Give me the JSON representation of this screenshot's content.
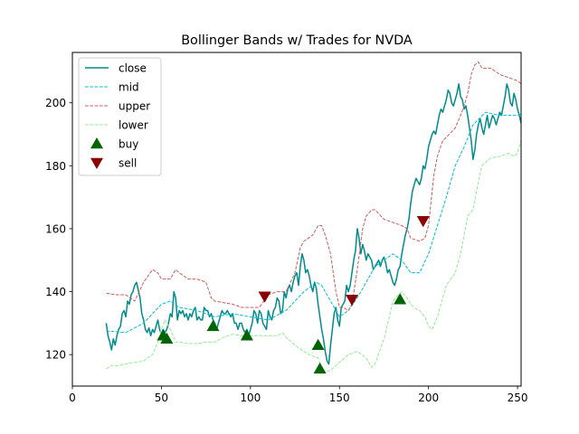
{
  "chart_data": {
    "type": "line",
    "title": "Bollinger Bands w/ Trades for NVDA",
    "xlabel": "",
    "ylabel": "",
    "xlim": [
      0,
      252
    ],
    "ylim": [
      110,
      216
    ],
    "xticks": [
      0,
      50,
      100,
      150,
      200,
      250
    ],
    "yticks": [
      120,
      140,
      160,
      180,
      200
    ],
    "grid": false,
    "legend_position": "top-left",
    "series": [
      {
        "name": "close",
        "color": "#008b8b",
        "style": "solid",
        "x": [
          19,
          20,
          21,
          22,
          23,
          24,
          25,
          26,
          27,
          28,
          29,
          30,
          31,
          32,
          33,
          34,
          35,
          36,
          37,
          38,
          39,
          40,
          41,
          42,
          43,
          44,
          45,
          46,
          47,
          48,
          49,
          50,
          51,
          52,
          53,
          54,
          55,
          56,
          57,
          58,
          59,
          60,
          61,
          62,
          63,
          64,
          65,
          66,
          67,
          68,
          69,
          70,
          71,
          72,
          73,
          74,
          75,
          76,
          77,
          78,
          79,
          80,
          81,
          82,
          83,
          84,
          85,
          86,
          87,
          88,
          89,
          90,
          91,
          92,
          93,
          94,
          95,
          96,
          97,
          98,
          99,
          100,
          101,
          102,
          103,
          104,
          105,
          106,
          107,
          108,
          109,
          110,
          111,
          112,
          113,
          114,
          115,
          116,
          117,
          118,
          119,
          120,
          121,
          122,
          123,
          124,
          125,
          126,
          127,
          128,
          129,
          130,
          131,
          132,
          133,
          134,
          135,
          136,
          137,
          138,
          139,
          140,
          141,
          142,
          143,
          144,
          145,
          146,
          147,
          148,
          149,
          150,
          151,
          152,
          153,
          154,
          155,
          156,
          157,
          158,
          159,
          160,
          161,
          162,
          163,
          164,
          165,
          166,
          167,
          168,
          169,
          170,
          171,
          172,
          173,
          174,
          175,
          176,
          177,
          178,
          179,
          180,
          181,
          182,
          183,
          184,
          185,
          186,
          187,
          188,
          189,
          190,
          191,
          192,
          193,
          194,
          195,
          196,
          197,
          198,
          199,
          200,
          201,
          202,
          203,
          204,
          205,
          206,
          207,
          208,
          209,
          210,
          211,
          212,
          213,
          214,
          215,
          216,
          217,
          218,
          219,
          220,
          221,
          222,
          223,
          224,
          225,
          226,
          227,
          228,
          229,
          230,
          231,
          232,
          233,
          234,
          235,
          236,
          237,
          238,
          239,
          240,
          241,
          242,
          243,
          244,
          245,
          246,
          247,
          248,
          249,
          250,
          251,
          252
        ],
        "y": [
          130,
          126,
          124,
          121.5,
          125,
          123,
          126,
          128,
          129,
          133,
          134,
          132,
          137,
          136,
          139,
          140,
          142,
          143,
          140.5,
          138,
          133,
          131,
          128,
          127,
          128.5,
          126,
          128,
          127,
          129,
          131,
          128,
          126.5,
          128,
          127,
          128,
          130,
          133,
          132,
          140,
          138,
          131,
          134,
          133,
          134,
          132,
          133,
          131,
          133,
          132,
          134,
          135,
          131,
          132,
          131,
          131,
          135,
          134,
          134,
          132,
          133,
          131,
          130,
          128,
          130,
          132,
          134,
          133,
          133,
          134,
          133,
          132,
          133,
          130,
          130,
          128,
          130,
          130,
          128,
          127,
          128,
          126,
          128,
          130,
          134,
          133,
          130,
          134,
          133,
          130,
          129,
          128,
          134,
          132,
          131,
          134,
          135,
          138,
          137,
          133,
          134,
          140,
          138,
          141,
          142,
          140,
          143,
          145,
          146,
          142,
          148,
          152,
          150,
          146,
          147,
          145,
          142,
          140,
          143,
          141,
          136,
          132,
          128,
          125,
          121,
          118,
          117,
          123,
          128,
          133,
          135,
          131,
          129,
          135,
          136,
          137,
          142,
          140,
          142,
          146,
          150,
          153,
          160,
          157,
          152,
          155,
          153,
          150,
          152,
          151,
          150,
          147,
          148,
          149,
          150,
          148,
          150,
          151,
          149,
          146,
          147,
          145,
          143,
          142,
          144,
          147,
          148,
          152,
          155,
          158,
          160,
          163,
          168,
          172,
          174,
          176,
          175,
          174,
          176,
          180,
          179,
          182,
          186,
          188,
          190,
          191,
          190,
          193,
          196,
          198,
          197,
          199,
          201,
          204,
          203,
          200,
          199,
          201,
          203,
          206,
          202,
          201,
          198,
          199,
          196,
          192,
          188,
          182,
          185,
          190,
          193,
          195,
          192,
          190,
          193,
          196,
          192,
          194,
          196,
          195,
          193,
          195,
          197,
          196,
          199,
          202,
          206,
          204,
          200,
          199,
          203,
          201,
          198,
          196,
          193.5
        ]
      },
      {
        "name": "mid",
        "color": "#00bfd8",
        "style": "dashed",
        "x": [
          19,
          30,
          40,
          50,
          55,
          60,
          70,
          80,
          90,
          100,
          110,
          120,
          130,
          137,
          140,
          145,
          150,
          155,
          160,
          170,
          180,
          185,
          190,
          195,
          200,
          210,
          215,
          220,
          225,
          232,
          240,
          245,
          250,
          252
        ],
        "y": [
          127.5,
          127,
          130,
          136,
          137,
          135,
          134,
          132,
          133,
          132,
          131,
          134,
          140,
          143,
          142,
          137,
          132,
          134,
          138,
          148,
          152,
          150,
          146,
          146,
          152,
          170,
          180,
          186,
          193,
          197,
          196,
          196,
          196,
          196.5
        ]
      },
      {
        "name": "upper",
        "color": "#cd5c5c",
        "style": "dashed",
        "x": [
          19,
          25,
          30,
          35,
          40,
          45,
          48,
          50,
          55,
          58,
          60,
          65,
          70,
          75,
          78,
          80,
          90,
          95,
          100,
          105,
          110,
          115,
          120,
          125,
          128,
          130,
          135,
          138,
          140,
          142,
          145,
          148,
          150,
          152,
          155,
          157,
          160,
          163,
          165,
          168,
          170,
          175,
          180,
          185,
          188,
          190,
          195,
          198,
          200,
          203,
          205,
          208,
          210,
          215,
          218,
          220,
          222,
          224,
          226,
          228,
          230,
          235,
          240,
          245,
          250,
          252
        ],
        "y": [
          139.5,
          139,
          139,
          137,
          143,
          147,
          146,
          144,
          144,
          147,
          146,
          144,
          144,
          143,
          138,
          137,
          136,
          135,
          135,
          135,
          139,
          140,
          140,
          146,
          154,
          156,
          158,
          161,
          161,
          158,
          152,
          140,
          135,
          135,
          134,
          136,
          147,
          160,
          164,
          166,
          166,
          163,
          162,
          161,
          160,
          157,
          156,
          157,
          161,
          177,
          183,
          188,
          189,
          192,
          196,
          199,
          203,
          209,
          212,
          213,
          211,
          211,
          209,
          208,
          207,
          206
        ]
      },
      {
        "name": "lower",
        "color": "#90ee90",
        "style": "dashed",
        "x": [
          19,
          22,
          25,
          30,
          35,
          40,
          45,
          48,
          50,
          52,
          55,
          58,
          60,
          65,
          70,
          75,
          80,
          85,
          90,
          95,
          100,
          105,
          110,
          115,
          118,
          120,
          125,
          130,
          133,
          135,
          138,
          140,
          142,
          145,
          150,
          155,
          160,
          165,
          168,
          170,
          175,
          178,
          180,
          183,
          185,
          188,
          190,
          193,
          195,
          198,
          200,
          202,
          205,
          208,
          210,
          215,
          218,
          220,
          222,
          225,
          228,
          230,
          235,
          240,
          245,
          248,
          250,
          252
        ],
        "y": [
          115.5,
          116.5,
          116.5,
          117,
          117.5,
          118,
          120,
          124,
          128,
          131,
          128,
          124,
          124,
          123.5,
          123.5,
          124,
          124,
          125.5,
          126.5,
          126,
          126,
          126,
          126,
          126,
          127,
          125.5,
          123,
          121,
          120,
          119.5,
          119,
          116,
          114.5,
          115,
          117.5,
          120,
          121,
          119,
          116,
          117,
          125,
          132,
          137,
          139,
          140,
          138,
          136,
          134.5,
          134,
          132,
          129,
          128,
          132,
          138,
          142,
          146,
          152,
          158,
          164,
          166,
          175,
          180,
          182.5,
          183,
          184,
          183,
          184,
          188
        ]
      }
    ],
    "trades": [
      {
        "name": "buy",
        "color": "#006400",
        "marker": "triangle-up",
        "x": [
          51,
          53,
          79,
          98,
          138,
          139,
          184
        ],
        "y": [
          126,
          125,
          129,
          126,
          123,
          115.5,
          137.5
        ]
      },
      {
        "name": "sell",
        "color": "#8b0000",
        "marker": "triangle-down",
        "x": [
          108,
          157,
          197
        ],
        "y": [
          138.5,
          137.5,
          162.5
        ]
      }
    ]
  }
}
